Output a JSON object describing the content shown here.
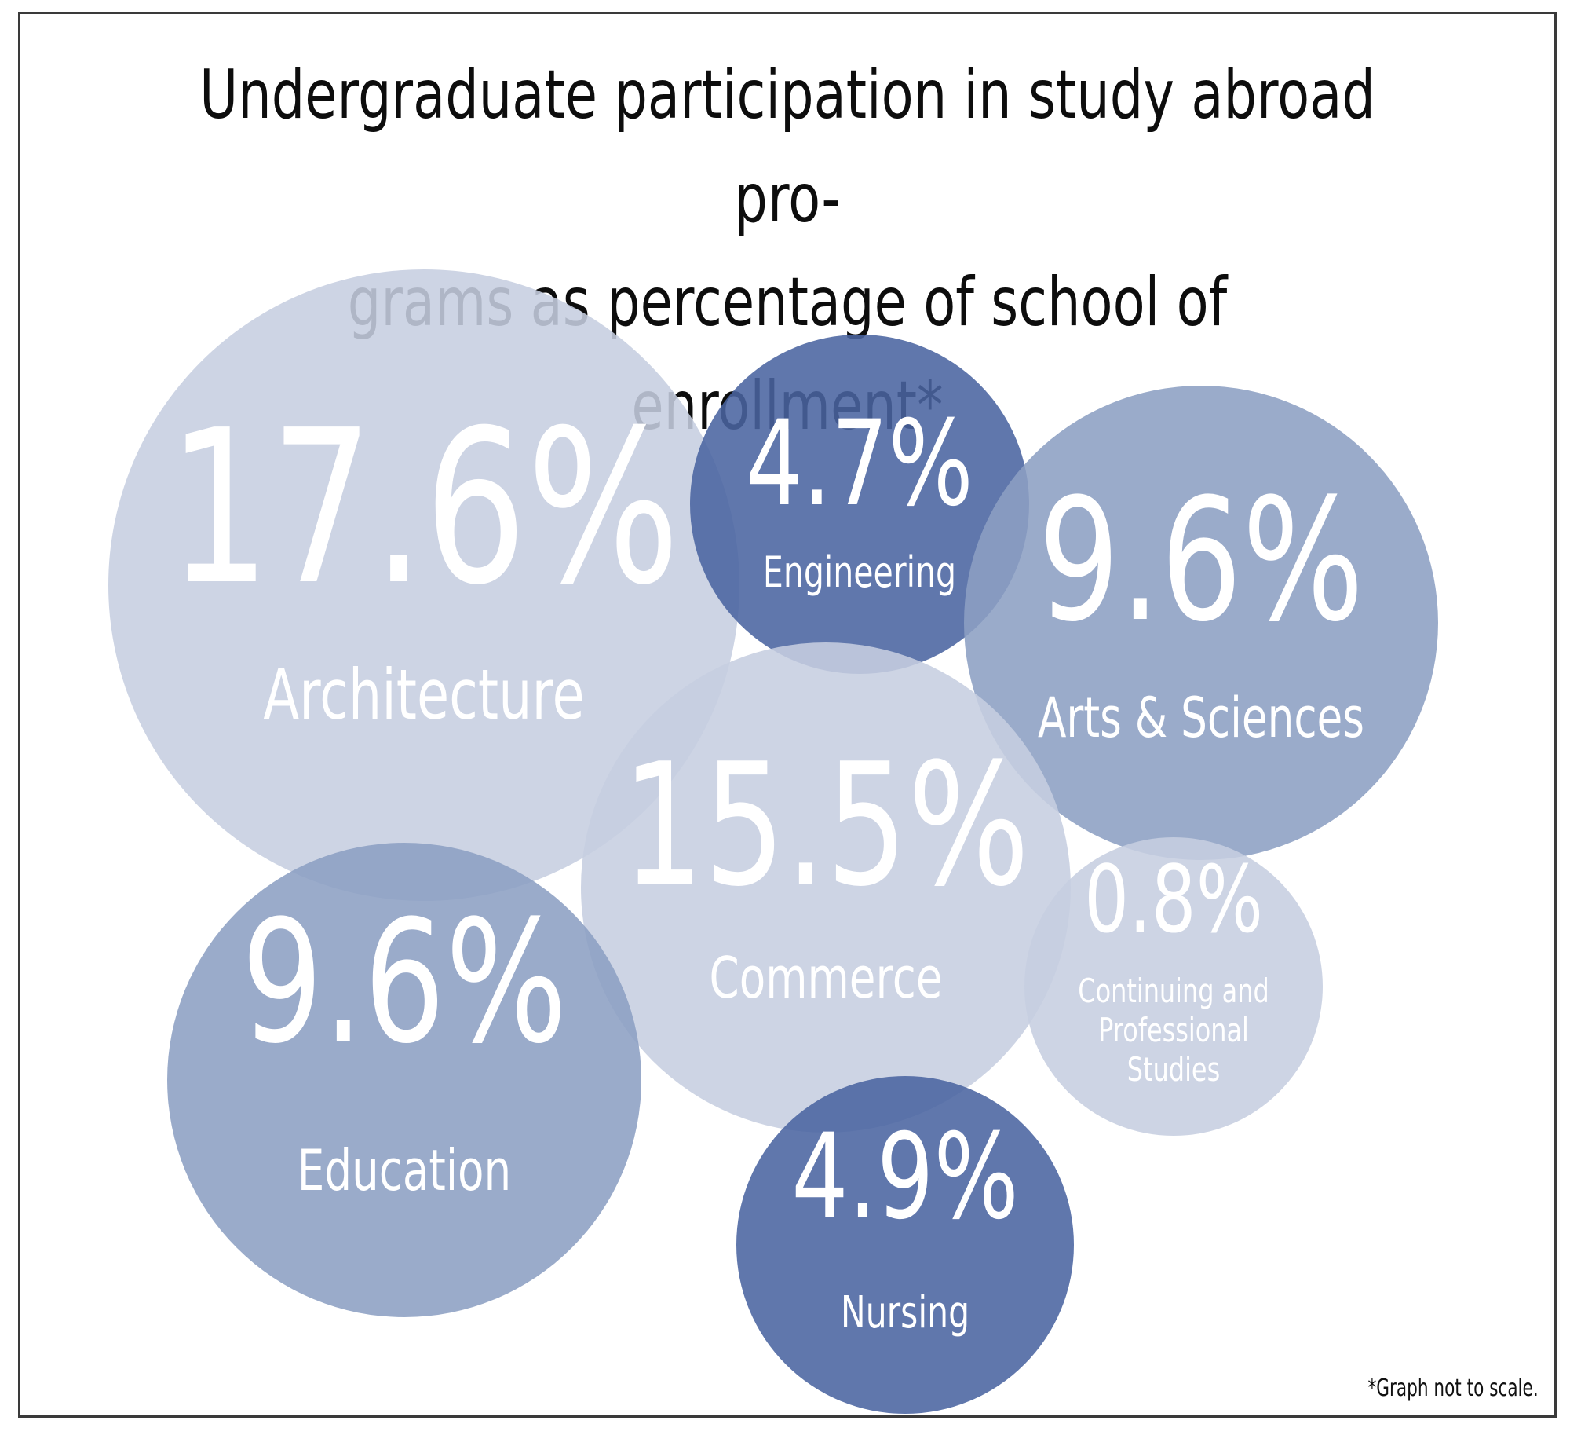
{
  "chart_data": {
    "type": "bubble",
    "title_lines": [
      "Undergraduate participation in study abroad pro-",
      "grams as percentage of school of enrollment*"
    ],
    "footnote": "*Graph not to scale.",
    "unit": "%",
    "series": [
      {
        "label": "Architecture",
        "value": 17.6,
        "value_text": "17.6%",
        "label_lines": [
          "Architecture"
        ],
        "color": "#c6cee0"
      },
      {
        "label": "Engineering",
        "value": 4.7,
        "value_text": "4.7%",
        "label_lines": [
          "Engineering"
        ],
        "color": "#4a64a0"
      },
      {
        "label": "Arts & Sciences",
        "value": 9.6,
        "value_text": "9.6%",
        "label_lines": [
          "Arts & Sciences"
        ],
        "color": "#8c9fc3"
      },
      {
        "label": "Commerce",
        "value": 15.5,
        "value_text": "15.5%",
        "label_lines": [
          "Commerce"
        ],
        "color": "#c6cee0"
      },
      {
        "label": "Continuing and Professional Studies",
        "value": 0.8,
        "value_text": "0.8%",
        "label_lines": [
          "Continuing and",
          "Professional",
          "Studies"
        ],
        "color": "#c6cee0"
      },
      {
        "label": "Education",
        "value": 9.6,
        "value_text": "9.6%",
        "label_lines": [
          "Education"
        ],
        "color": "#8c9fc3"
      },
      {
        "label": "Nursing",
        "value": 4.9,
        "value_text": "4.9%",
        "label_lines": [
          "Nursing"
        ],
        "color": "#4a64a0"
      }
    ]
  }
}
